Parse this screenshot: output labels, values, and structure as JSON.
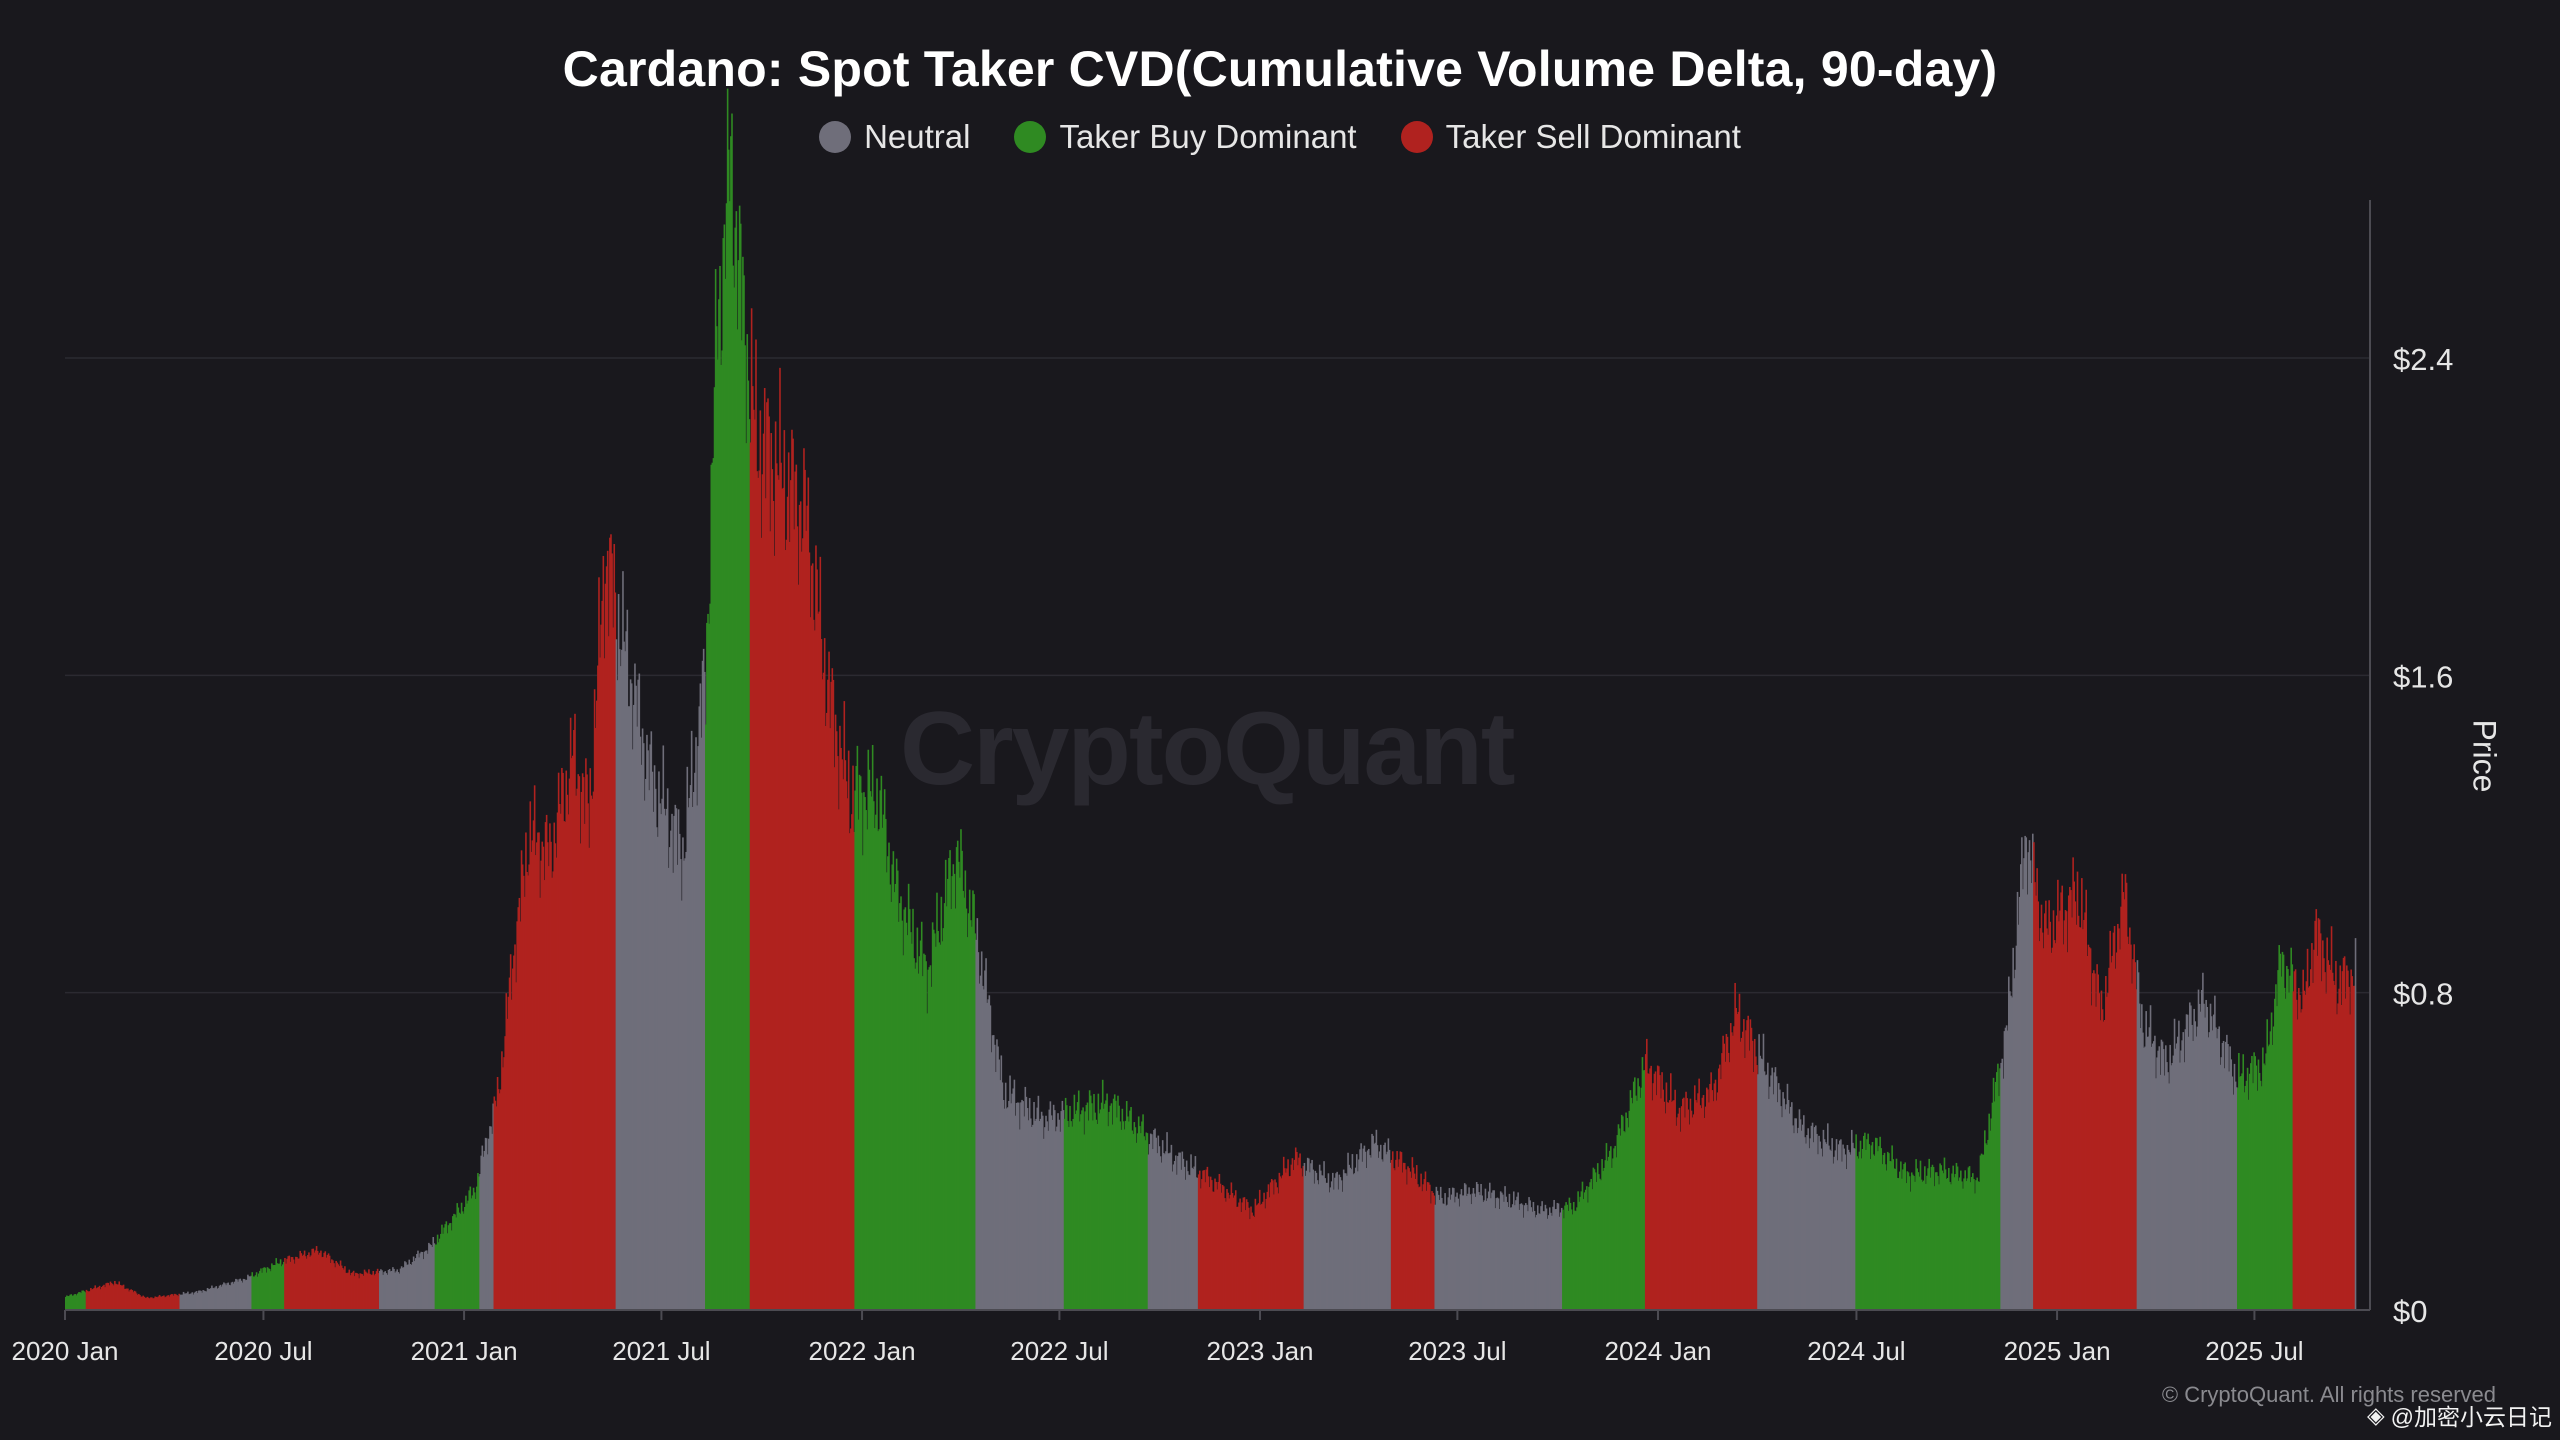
{
  "chart_data": {
    "type": "bar",
    "title": "Cardano: Spot Taker CVD(Cumulative Volume Delta, 90-day)",
    "ylabel": "Price",
    "ylim": [
      0,
      3.0
    ],
    "y_ticks": [
      {
        "value": 0,
        "label": "$0"
      },
      {
        "value": 0.8,
        "label": "$0.8"
      },
      {
        "value": 1.6,
        "label": "$1.6"
      },
      {
        "value": 2.4,
        "label": "$2.4"
      }
    ],
    "x_range": [
      "2020-01-01",
      "2025-10-15"
    ],
    "x_ticks": [
      {
        "date": "2020-01-01",
        "label": "2020 Jan"
      },
      {
        "date": "2020-07-01",
        "label": "2020 Jul"
      },
      {
        "date": "2021-01-01",
        "label": "2021 Jan"
      },
      {
        "date": "2021-07-01",
        "label": "2021 Jul"
      },
      {
        "date": "2022-01-01",
        "label": "2022 Jan"
      },
      {
        "date": "2022-07-01",
        "label": "2022 Jul"
      },
      {
        "date": "2023-01-01",
        "label": "2023 Jan"
      },
      {
        "date": "2023-07-01",
        "label": "2023 Jul"
      },
      {
        "date": "2024-01-01",
        "label": "2024 Jan"
      },
      {
        "date": "2024-07-01",
        "label": "2024 Jul"
      },
      {
        "date": "2025-01-01",
        "label": "2025 Jan"
      },
      {
        "date": "2025-07-01",
        "label": "2025 Jul"
      }
    ],
    "legend": [
      {
        "key": "neutral",
        "label": "Neutral",
        "color": "#6f6e7a"
      },
      {
        "key": "buy",
        "label": "Taker Buy Dominant",
        "color": "#2f8a22"
      },
      {
        "key": "sell",
        "label": "Taker Sell Dominant",
        "color": "#b0221f"
      }
    ],
    "legend_position": "top-center",
    "grid": true,
    "price_series": [
      [
        "2020-01-01",
        0.033
      ],
      [
        "2020-02-15",
        0.07
      ],
      [
        "2020-03-15",
        0.03
      ],
      [
        "2020-05-01",
        0.045
      ],
      [
        "2020-06-15",
        0.08
      ],
      [
        "2020-07-15",
        0.12
      ],
      [
        "2020-08-20",
        0.15
      ],
      [
        "2020-09-20",
        0.09
      ],
      [
        "2020-11-01",
        0.1
      ],
      [
        "2020-12-01",
        0.16
      ],
      [
        "2021-01-10",
        0.3
      ],
      [
        "2021-02-01",
        0.55
      ],
      [
        "2021-02-15",
        0.9
      ],
      [
        "2021-03-01",
        1.2
      ],
      [
        "2021-03-20",
        1.15
      ],
      [
        "2021-04-10",
        1.4
      ],
      [
        "2021-04-25",
        1.25
      ],
      [
        "2021-05-10",
        1.9
      ],
      [
        "2021-05-25",
        1.7
      ],
      [
        "2021-06-20",
        1.35
      ],
      [
        "2021-07-20",
        1.15
      ],
      [
        "2021-08-10",
        1.6
      ],
      [
        "2021-08-20",
        2.45
      ],
      [
        "2021-09-02",
        2.9
      ],
      [
        "2021-09-10",
        2.6
      ],
      [
        "2021-09-25",
        2.2
      ],
      [
        "2021-10-20",
        2.1
      ],
      [
        "2021-11-10",
        2.0
      ],
      [
        "2021-12-01",
        1.55
      ],
      [
        "2021-12-20",
        1.3
      ],
      [
        "2022-01-15",
        1.3
      ],
      [
        "2022-02-01",
        1.05
      ],
      [
        "2022-03-01",
        0.85
      ],
      [
        "2022-03-28",
        1.15
      ],
      [
        "2022-04-15",
        0.95
      ],
      [
        "2022-05-10",
        0.55
      ],
      [
        "2022-06-15",
        0.48
      ],
      [
        "2022-07-15",
        0.5
      ],
      [
        "2022-08-15",
        0.52
      ],
      [
        "2022-09-15",
        0.45
      ],
      [
        "2022-10-15",
        0.38
      ],
      [
        "2022-11-15",
        0.33
      ],
      [
        "2022-12-25",
        0.25
      ],
      [
        "2023-02-01",
        0.38
      ],
      [
        "2023-03-10",
        0.32
      ],
      [
        "2023-04-15",
        0.42
      ],
      [
        "2023-05-15",
        0.36
      ],
      [
        "2023-06-15",
        0.28
      ],
      [
        "2023-07-15",
        0.3
      ],
      [
        "2023-08-15",
        0.28
      ],
      [
        "2023-09-15",
        0.25
      ],
      [
        "2023-10-15",
        0.26
      ],
      [
        "2023-11-20",
        0.4
      ],
      [
        "2023-12-20",
        0.62
      ],
      [
        "2024-01-20",
        0.5
      ],
      [
        "2024-02-20",
        0.55
      ],
      [
        "2024-03-12",
        0.75
      ],
      [
        "2024-04-10",
        0.6
      ],
      [
        "2024-05-10",
        0.46
      ],
      [
        "2024-06-15",
        0.4
      ],
      [
        "2024-07-15",
        0.42
      ],
      [
        "2024-08-15",
        0.34
      ],
      [
        "2024-09-15",
        0.35
      ],
      [
        "2024-10-20",
        0.33
      ],
      [
        "2024-11-15",
        0.7
      ],
      [
        "2024-12-03",
        1.2
      ],
      [
        "2024-12-20",
        0.95
      ],
      [
        "2025-01-20",
        1.05
      ],
      [
        "2025-02-10",
        0.75
      ],
      [
        "2025-03-03",
        1.05
      ],
      [
        "2025-03-20",
        0.72
      ],
      [
        "2025-04-10",
        0.62
      ],
      [
        "2025-05-15",
        0.78
      ],
      [
        "2025-06-15",
        0.58
      ],
      [
        "2025-07-10",
        0.62
      ],
      [
        "2025-07-25",
        0.88
      ],
      [
        "2025-08-15",
        0.78
      ],
      [
        "2025-08-25",
        0.95
      ],
      [
        "2025-09-15",
        0.82
      ],
      [
        "2025-10-01",
        0.85
      ]
    ],
    "regime_segments": [
      {
        "start": "2020-01-01",
        "end": "2020-01-20",
        "state": "buy"
      },
      {
        "start": "2020-01-20",
        "end": "2020-04-15",
        "state": "sell"
      },
      {
        "start": "2020-04-15",
        "end": "2020-06-20",
        "state": "neutral"
      },
      {
        "start": "2020-06-20",
        "end": "2020-07-20",
        "state": "buy"
      },
      {
        "start": "2020-07-20",
        "end": "2020-10-15",
        "state": "sell"
      },
      {
        "start": "2020-10-15",
        "end": "2020-12-05",
        "state": "neutral"
      },
      {
        "start": "2020-12-05",
        "end": "2021-01-15",
        "state": "buy"
      },
      {
        "start": "2021-01-15",
        "end": "2021-01-28",
        "state": "neutral"
      },
      {
        "start": "2021-01-28",
        "end": "2021-05-20",
        "state": "sell"
      },
      {
        "start": "2021-05-20",
        "end": "2021-08-10",
        "state": "neutral"
      },
      {
        "start": "2021-08-10",
        "end": "2021-09-20",
        "state": "buy"
      },
      {
        "start": "2021-09-20",
        "end": "2021-12-25",
        "state": "sell"
      },
      {
        "start": "2021-12-25",
        "end": "2022-04-15",
        "state": "buy"
      },
      {
        "start": "2022-04-15",
        "end": "2022-07-05",
        "state": "neutral"
      },
      {
        "start": "2022-07-05",
        "end": "2022-09-20",
        "state": "buy"
      },
      {
        "start": "2022-09-20",
        "end": "2022-11-05",
        "state": "neutral"
      },
      {
        "start": "2022-11-05",
        "end": "2023-02-10",
        "state": "sell"
      },
      {
        "start": "2023-02-10",
        "end": "2023-05-01",
        "state": "neutral"
      },
      {
        "start": "2023-05-01",
        "end": "2023-06-10",
        "state": "sell"
      },
      {
        "start": "2023-06-10",
        "end": "2023-10-05",
        "state": "neutral"
      },
      {
        "start": "2023-10-05",
        "end": "2023-12-20",
        "state": "buy"
      },
      {
        "start": "2023-12-20",
        "end": "2024-04-01",
        "state": "sell"
      },
      {
        "start": "2024-04-01",
        "end": "2024-06-30",
        "state": "neutral"
      },
      {
        "start": "2024-06-30",
        "end": "2024-11-10",
        "state": "buy"
      },
      {
        "start": "2024-11-10",
        "end": "2024-12-10",
        "state": "neutral"
      },
      {
        "start": "2024-12-10",
        "end": "2025-03-15",
        "state": "sell"
      },
      {
        "start": "2025-03-15",
        "end": "2025-06-15",
        "state": "neutral"
      },
      {
        "start": "2025-06-15",
        "end": "2025-08-05",
        "state": "buy"
      },
      {
        "start": "2025-08-05",
        "end": "2025-10-01",
        "state": "sell"
      }
    ]
  },
  "watermark": "CryptoQuant",
  "copyright": "© CryptoQuant. All rights reserved",
  "source_tag": "@加密小云日记",
  "colors": {
    "background": "#19181d",
    "grid": "#2b2a31",
    "axis": "#4c4b52"
  }
}
